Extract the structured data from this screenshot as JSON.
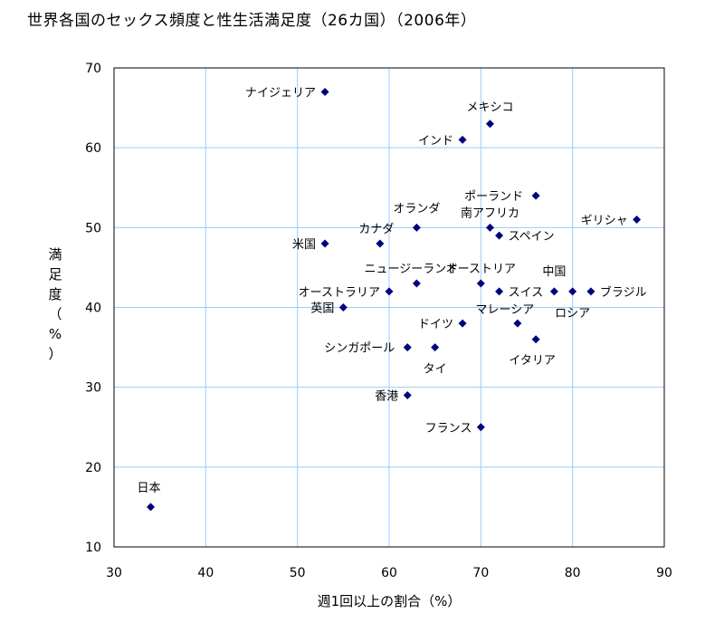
{
  "chart_data": {
    "type": "scatter",
    "title": "世界各国のセックス頻度と性生活満足度（26カ国）（2006年）",
    "xlabel": "週1回以上の割合（%）",
    "ylabel": [
      "満",
      "足",
      "度",
      "（",
      "%",
      "）"
    ],
    "xlim": [
      30,
      90
    ],
    "ylim": [
      10,
      70
    ],
    "xticks": [
      30,
      40,
      50,
      60,
      70,
      80,
      90
    ],
    "yticks": [
      10,
      20,
      30,
      40,
      50,
      60,
      70
    ],
    "grid": true,
    "marker_color": "#000080",
    "grid_color": "#99ccff",
    "points": [
      {
        "label": "ナイジェリア",
        "x": 53,
        "y": 67
      },
      {
        "label": "メキシコ",
        "x": 71,
        "y": 63
      },
      {
        "label": "インド",
        "x": 68,
        "y": 61
      },
      {
        "label": "ポーランド",
        "x": 76,
        "y": 54
      },
      {
        "label": "南アフリカ",
        "x": 71,
        "y": 50
      },
      {
        "label": "オランダ",
        "x": 63,
        "y": 50
      },
      {
        "label": "ギリシャ",
        "x": 87,
        "y": 51
      },
      {
        "label": "スペイン",
        "x": 72,
        "y": 49
      },
      {
        "label": "カナダ",
        "x": 59,
        "y": 48
      },
      {
        "label": "米国",
        "x": 53,
        "y": 48
      },
      {
        "label": "ニュージーランド",
        "x": 63,
        "y": 43
      },
      {
        "label": "オーストリア",
        "x": 70,
        "y": 43
      },
      {
        "label": "オーストラリア",
        "x": 60,
        "y": 42
      },
      {
        "label": "スイス",
        "x": 72,
        "y": 42
      },
      {
        "label": "中国",
        "x": 78,
        "y": 42
      },
      {
        "label": "ロシア",
        "x": 80,
        "y": 42
      },
      {
        "label": "ブラジル",
        "x": 82,
        "y": 42
      },
      {
        "label": "英国",
        "x": 55,
        "y": 40
      },
      {
        "label": "マレーシア",
        "x": 74,
        "y": 38
      },
      {
        "label": "ドイツ",
        "x": 68,
        "y": 38
      },
      {
        "label": "イタリア",
        "x": 76,
        "y": 36
      },
      {
        "label": "シンガポール",
        "x": 62,
        "y": 35
      },
      {
        "label": "タイ",
        "x": 65,
        "y": 35
      },
      {
        "label": "香港",
        "x": 62,
        "y": 29
      },
      {
        "label": "フランス",
        "x": 70,
        "y": 25
      },
      {
        "label": "日本",
        "x": 34,
        "y": 15
      }
    ]
  }
}
